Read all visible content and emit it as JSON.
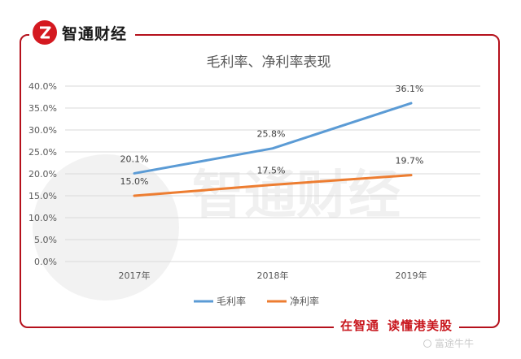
{
  "brand": {
    "name": "智通财经"
  },
  "watermark": {
    "text": "智通财经"
  },
  "slogan": {
    "part1": "在智通",
    "part2": "读懂港美股"
  },
  "corner_mark": {
    "text": "富途牛牛"
  },
  "colors": {
    "frame": "#b5111c",
    "gross": "#5b9bd5",
    "net": "#ed7d31",
    "accent": "#d41920"
  },
  "chart_data": {
    "type": "line",
    "title": "毛利率、净利率表现",
    "categories": [
      "2017年",
      "2018年",
      "2019年"
    ],
    "series": [
      {
        "name": "毛利率",
        "values": [
          20.1,
          25.8,
          36.1
        ],
        "labels": [
          "20.1%",
          "25.8%",
          "36.1%"
        ]
      },
      {
        "name": "净利率",
        "values": [
          15.0,
          17.5,
          19.7
        ],
        "labels": [
          "15.0%",
          "17.5%",
          "19.7%"
        ]
      }
    ],
    "ylim": [
      0,
      40
    ],
    "yticks": [
      "0.0%",
      "5.0%",
      "10.0%",
      "15.0%",
      "20.0%",
      "25.0%",
      "30.0%",
      "35.0%",
      "40.0%"
    ],
    "grid": true,
    "legend": "bottom",
    "xlabel": "",
    "ylabel": ""
  }
}
